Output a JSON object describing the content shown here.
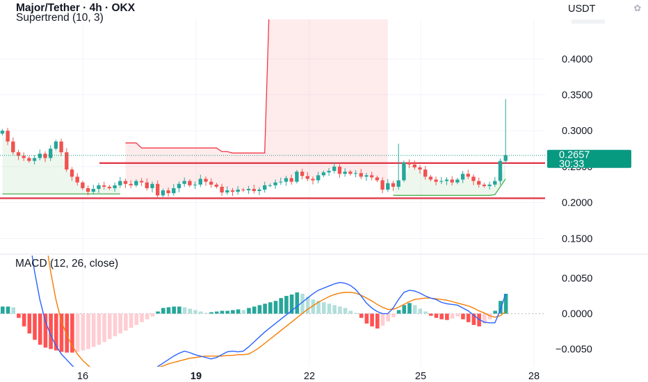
{
  "header": {
    "symbol_line": "Major/Tether · 4h · OKX",
    "indicator_line": "Supertrend (10, 3)"
  },
  "macd_label": "MACD (12, 26, close)",
  "currency": "USDT",
  "price_tag": {
    "price": "0.2657",
    "countdown": "30:33"
  },
  "colors": {
    "up": "#26a69a",
    "down": "#ef5350",
    "price_tag_bg": "#089981",
    "support_line": "#e03a4a",
    "supertrend_up": "#4caf50",
    "supertrend_down": "#f23645",
    "macd_line": "#2962ff",
    "signal_line": "#f57c00"
  },
  "chart_data": [
    {
      "type": "candlestick",
      "title": "Major/Tether · 4h · OKX",
      "x_ticks": [
        "16",
        "19",
        "22",
        "25",
        "28"
      ],
      "y_ticks": [
        "0.4000",
        "0.3500",
        "0.3000",
        "0.2500",
        "0.2000",
        "0.1500"
      ],
      "ylim": [
        0.13,
        0.455
      ],
      "last_price": 0.2657,
      "candle_count": 95,
      "closes": [
        0.3,
        0.285,
        0.27,
        0.265,
        0.262,
        0.258,
        0.262,
        0.268,
        0.262,
        0.275,
        0.285,
        0.27,
        0.246,
        0.236,
        0.228,
        0.22,
        0.215,
        0.219,
        0.224,
        0.222,
        0.22,
        0.224,
        0.23,
        0.226,
        0.224,
        0.23,
        0.228,
        0.22,
        0.226,
        0.21,
        0.217,
        0.213,
        0.22,
        0.226,
        0.23,
        0.224,
        0.225,
        0.233,
        0.229,
        0.225,
        0.222,
        0.214,
        0.217,
        0.215,
        0.218,
        0.217,
        0.219,
        0.216,
        0.218,
        0.224,
        0.224,
        0.228,
        0.229,
        0.234,
        0.229,
        0.243,
        0.237,
        0.233,
        0.231,
        0.238,
        0.242,
        0.244,
        0.25,
        0.24,
        0.243,
        0.24,
        0.241,
        0.236,
        0.238,
        0.235,
        0.231,
        0.218,
        0.227,
        0.222,
        0.231,
        0.256,
        0.253,
        0.249,
        0.246,
        0.236,
        0.232,
        0.229,
        0.23,
        0.232,
        0.228,
        0.232,
        0.24,
        0.236,
        0.23,
        0.225,
        0.223,
        0.225,
        0.23,
        0.258,
        0.266
      ],
      "high_spikes": [
        {
          "index": 74,
          "value": 0.282
        },
        {
          "index": 94,
          "value": 0.344
        }
      ],
      "support_lines": [
        0.255,
        0.206
      ],
      "supertrend": {
        "name": "Supertrend (10, 3)",
        "segments": [
          {
            "trend": "up",
            "from": 0,
            "to": 22,
            "start": 0.212,
            "end": 0.212
          },
          {
            "trend": "down",
            "from": 23,
            "to": 72,
            "start": 0.283,
            "end": 0.245
          },
          {
            "trend": "up",
            "from": 73,
            "to": 94,
            "start": 0.21,
            "end": 0.233
          }
        ]
      }
    },
    {
      "type": "macd",
      "title": "MACD (12, 26, close)",
      "y_ticks": [
        "0.0050",
        "0.0000",
        "−0.0050"
      ],
      "ylim": [
        -0.0075,
        0.0082
      ],
      "histogram": [
        0.001,
        0.001,
        0.0009,
        -0.0006,
        -0.0018,
        -0.0028,
        -0.0037,
        -0.0044,
        -0.0048,
        -0.005,
        -0.0052,
        -0.0054,
        -0.0055,
        -0.0055,
        -0.0054,
        -0.0052,
        -0.005,
        -0.0047,
        -0.0044,
        -0.004,
        -0.0036,
        -0.0032,
        -0.0028,
        -0.0024,
        -0.002,
        -0.0016,
        -0.0012,
        -0.0008,
        -0.0004,
        0.0003,
        0.0008,
        0.0009,
        0.001,
        0.001,
        0.0009,
        0.0007,
        0.0005,
        0.0003,
        0.0001,
        0.0002,
        0.0003,
        0.0004,
        0.0004,
        0.0005,
        0.0006,
        0.0005,
        0.0008,
        0.001,
        0.0012,
        0.0014,
        0.0016,
        0.0018,
        0.0022,
        0.0025,
        0.0027,
        0.003,
        0.0028,
        0.0024,
        0.002,
        0.0018,
        0.0016,
        0.0014,
        0.0012,
        0.001,
        0.0008,
        0.0004,
        0.0001,
        -0.0006,
        -0.0014,
        -0.0018,
        -0.0021,
        -0.0017,
        -0.0011,
        -0.0005,
        0.0005,
        0.0012,
        0.0015,
        0.0012,
        0.0007,
        0.0003,
        -0.0003,
        -0.0006,
        -0.0008,
        -0.0009,
        -0.0007,
        -0.0004,
        -0.0008,
        -0.0012,
        -0.0016,
        -0.0018,
        -0.0014,
        -0.0008,
        0.0004,
        0.0018,
        0.0028
      ],
      "macd_line": [
        0.05,
        0.042,
        0.034,
        0.026,
        0.018,
        0.011,
        0.006,
        0.002,
        -0.001,
        -0.003,
        -0.0045,
        -0.0057,
        -0.0065,
        -0.0073,
        -0.008,
        -0.0086,
        -0.0091,
        -0.0095,
        -0.0098,
        -0.01,
        -0.0101,
        -0.0101,
        -0.01,
        -0.0098,
        -0.0096,
        -0.0093,
        -0.009,
        -0.0086,
        -0.0081,
        -0.0075,
        -0.007,
        -0.0065,
        -0.006,
        -0.0056,
        -0.0053,
        -0.0055,
        -0.0058,
        -0.006,
        -0.0062,
        -0.0064,
        -0.0062,
        -0.0058,
        -0.0054,
        -0.0053,
        -0.0054,
        -0.0053,
        -0.0047,
        -0.004,
        -0.0033,
        -0.0026,
        -0.002,
        -0.0014,
        -0.0008,
        -0.0002,
        0.0004,
        0.001,
        0.0016,
        0.0022,
        0.0028,
        0.0033,
        0.0036,
        0.0039,
        0.0042,
        0.0044,
        0.0043,
        0.004,
        0.0034,
        0.0025,
        0.0015,
        0.0008,
        0.0003,
        0.0,
        0.0,
        0.0008,
        0.002,
        0.003,
        0.0033,
        0.0032,
        0.0029,
        0.0025,
        0.0022,
        0.002,
        0.0016,
        0.0014,
        0.0013,
        0.0012,
        0.0008,
        0.0004,
        -0.0002,
        -0.0008,
        -0.0012,
        -0.0013,
        -0.0013,
        0.0005,
        0.0028
      ],
      "signal_line": [
        0.07,
        0.062,
        0.054,
        0.046,
        0.038,
        0.03,
        0.023,
        0.017,
        0.011,
        0.006,
        0.002,
        -0.001,
        -0.003,
        -0.0045,
        -0.0057,
        -0.0066,
        -0.0073,
        -0.0079,
        -0.0084,
        -0.0087,
        -0.0089,
        -0.009,
        -0.009,
        -0.0089,
        -0.0088,
        -0.0086,
        -0.0084,
        -0.0082,
        -0.0079,
        -0.0076,
        -0.0074,
        -0.0071,
        -0.0069,
        -0.0067,
        -0.0065,
        -0.0063,
        -0.0062,
        -0.0061,
        -0.006,
        -0.006,
        -0.006,
        -0.006,
        -0.0059,
        -0.0059,
        -0.0058,
        -0.0058,
        -0.0057,
        -0.0053,
        -0.0048,
        -0.0042,
        -0.0036,
        -0.003,
        -0.0024,
        -0.0018,
        -0.0012,
        -0.0006,
        0.0,
        0.0006,
        0.0011,
        0.0016,
        0.002,
        0.0024,
        0.0027,
        0.0029,
        0.003,
        0.003,
        0.0029,
        0.0026,
        0.0022,
        0.0018,
        0.0013,
        0.0009,
        0.0006,
        0.0006,
        0.0009,
        0.0013,
        0.0017,
        0.002,
        0.0021,
        0.0022,
        0.0022,
        0.0021,
        0.002,
        0.0019,
        0.0017,
        0.0015,
        0.0013,
        0.0011,
        0.0008,
        0.0004,
        0.0001,
        -0.0003,
        -0.0005,
        -0.0003,
        0.0003
      ]
    }
  ]
}
